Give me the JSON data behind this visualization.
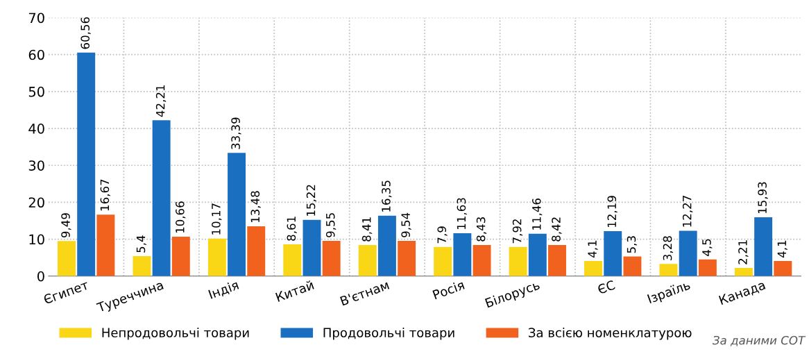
{
  "chart_data": {
    "type": "bar",
    "categories": [
      "Єгипет",
      "Туреччина",
      "Індія",
      "Китай",
      "В'єтнам",
      "Росія",
      "Білорусь",
      "ЄС",
      "Ізраїль",
      "Канада"
    ],
    "series": [
      {
        "name": "Непродовольчі товари",
        "color": "#f9d616",
        "values": [
          9.49,
          5.4,
          10.17,
          8.61,
          8.41,
          7.9,
          7.92,
          4.1,
          3.28,
          2.21
        ],
        "value_labels": [
          "9,49",
          "5,4",
          "10,17",
          "8,61",
          "8,41",
          "7,9",
          "7,92",
          "4,1",
          "3,28",
          "2,21"
        ]
      },
      {
        "name": "Продовольчі товари",
        "color": "#1a6fc0",
        "values": [
          60.56,
          42.21,
          33.39,
          15.22,
          16.35,
          11.63,
          11.46,
          12.19,
          12.27,
          15.93
        ],
        "value_labels": [
          "60,56",
          "42,21",
          "33,39",
          "15,22",
          "16,35",
          "11,63",
          "11,46",
          "12,19",
          "12,27",
          "15,93"
        ]
      },
      {
        "name": "За всією номенклатурою",
        "color": "#f2621f",
        "values": [
          16.67,
          10.66,
          13.48,
          9.55,
          9.54,
          8.43,
          8.42,
          5.3,
          4.5,
          4.1
        ],
        "value_labels": [
          "16,67",
          "10,66",
          "13,48",
          "9,55",
          "9,54",
          "8,43",
          "8,42",
          "5,3",
          "4,5",
          "4,1"
        ]
      }
    ],
    "ylim": [
      0,
      70
    ],
    "yticks": [
      0,
      10,
      20,
      30,
      40,
      50,
      60,
      70
    ],
    "grid": true,
    "legend": "bottom",
    "annotations": [
      "За даними СОТ"
    ]
  }
}
